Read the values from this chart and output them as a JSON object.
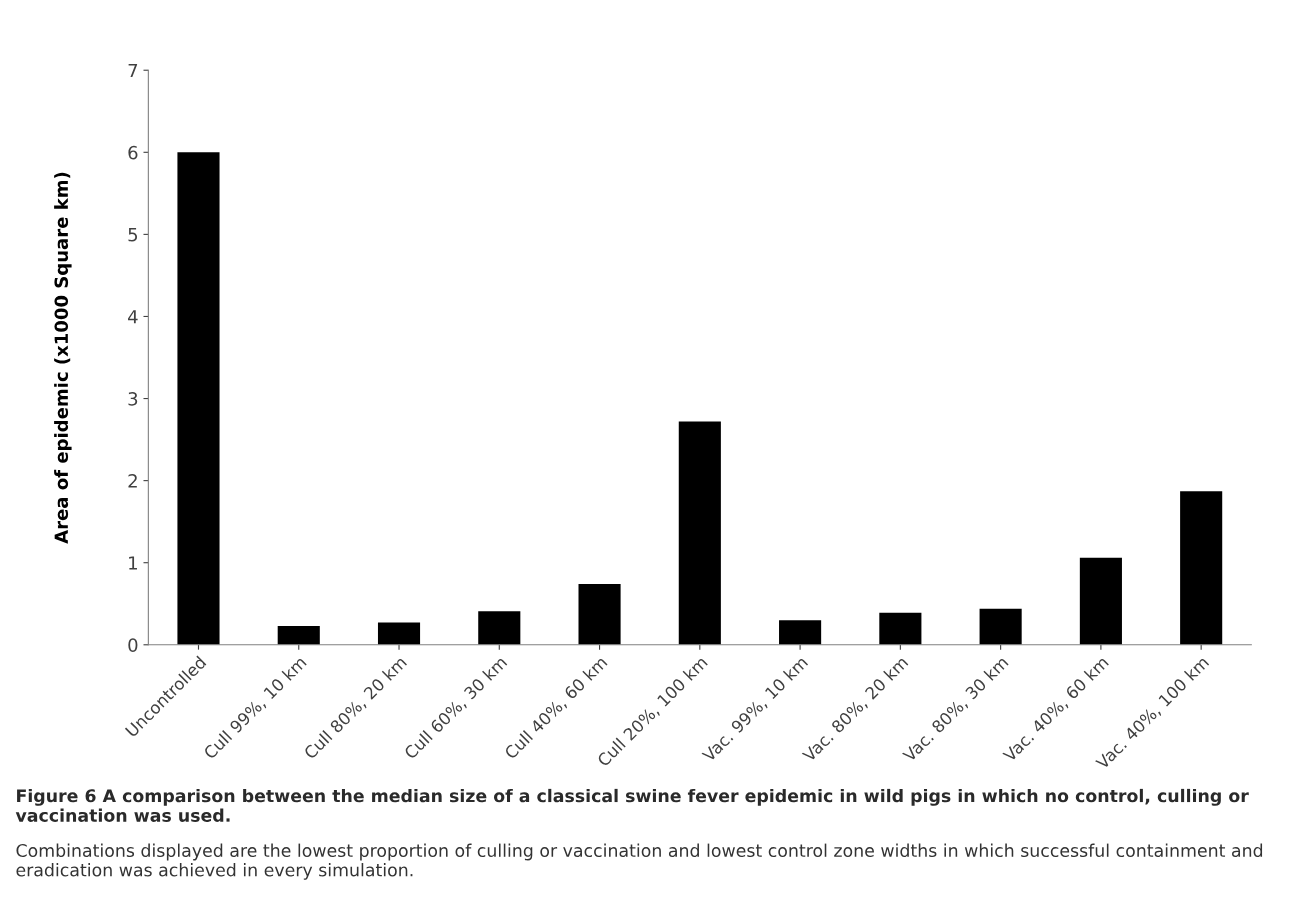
{
  "chart_data": {
    "type": "bar",
    "categories": [
      "Uncontrolled",
      "Cull 99%, 10 km",
      "Cull 80%, 20 km",
      "Cull 60%, 30 km",
      "Cull 40%, 60 km",
      "Cull 20%, 100 km",
      "Vac. 99%, 10 km",
      "Vac. 80%, 20 km",
      "Vac. 80%, 30 km",
      "Vac. 40%, 60 km",
      "Vac. 40%, 100 km"
    ],
    "values": [
      6.0,
      0.23,
      0.27,
      0.41,
      0.74,
      2.72,
      0.3,
      0.39,
      0.44,
      1.06,
      1.87
    ],
    "color": "#000000",
    "ylabel": "Area of epidemic (x1000 Square km)",
    "ylim": [
      0,
      7
    ],
    "yticks": [
      0,
      1,
      2,
      3,
      4,
      5,
      6,
      7
    ],
    "grid": false,
    "legend": false,
    "annotations": [
      "Figure 6 A comparison between the median size of a classical swine fever epidemic in wild pigs in which no control, culling or vaccination was used.",
      "Combinations displayed are the lowest proportion of culling or vaccination and lowest control zone widths in which successful containment and eradication was achieved in every simulation."
    ]
  }
}
